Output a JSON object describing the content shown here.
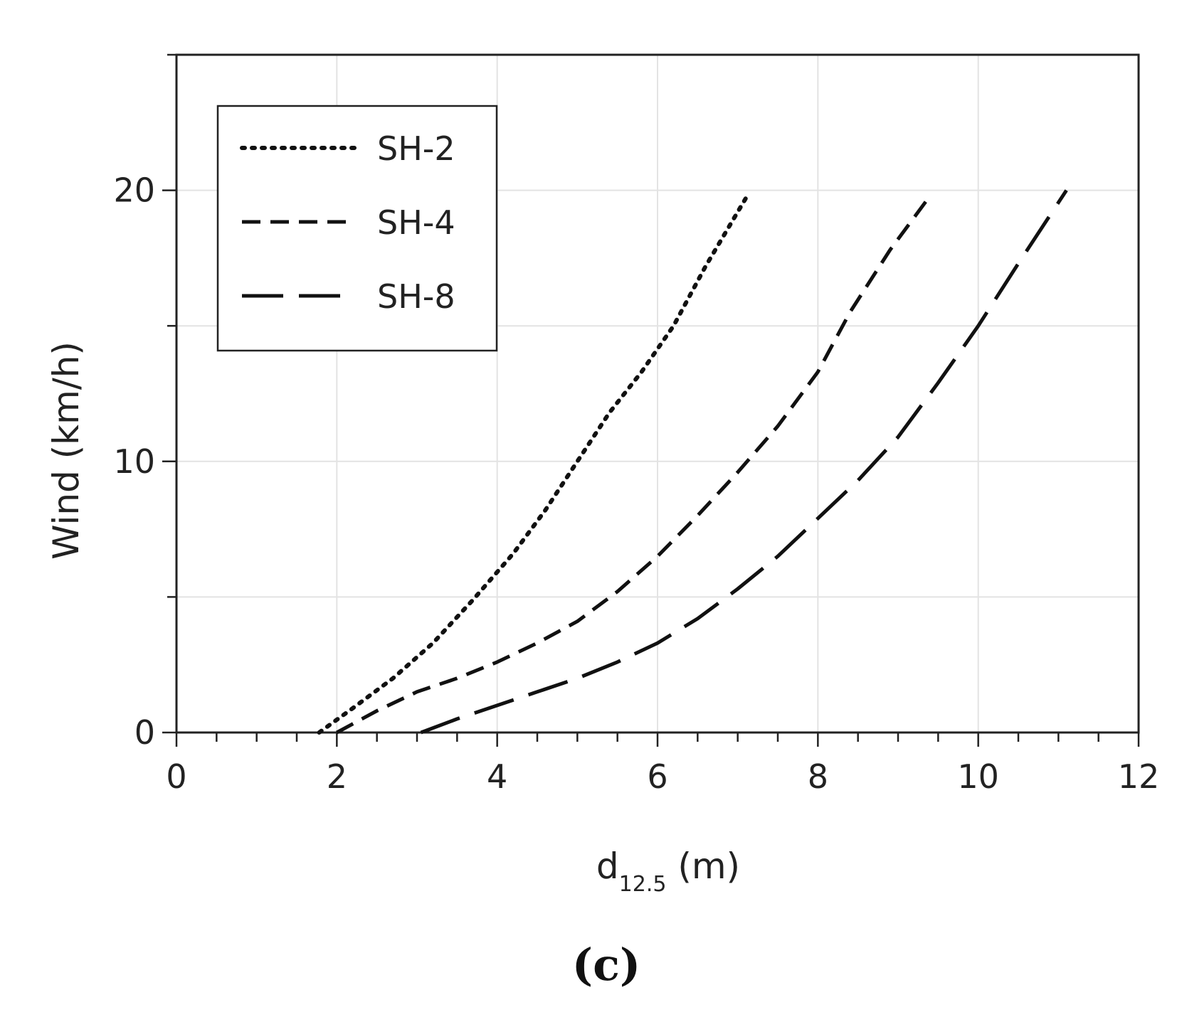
{
  "chart_data": {
    "type": "line",
    "title": "",
    "xlabel": "d",
    "xlabel_sub": "12.5",
    "xlabel_unit": " (m)",
    "ylabel": "Wind (km/h)",
    "xlim": [
      0,
      12
    ],
    "ylim": [
      0,
      25
    ],
    "x_ticks": [
      "0",
      "2",
      "4",
      "6",
      "8",
      "10",
      "12"
    ],
    "y_ticks": [
      "0",
      "10",
      "20"
    ],
    "grid": true,
    "legend_position": "top-left",
    "panel_label": "(c)",
    "series": [
      {
        "name": "SH-2",
        "style": "dotted",
        "color": "#111111",
        "points": [
          [
            1.78,
            0
          ],
          [
            2.2,
            0.9
          ],
          [
            2.7,
            2.0
          ],
          [
            3.2,
            3.3
          ],
          [
            3.7,
            4.9
          ],
          [
            4.2,
            6.6
          ],
          [
            4.6,
            8.2
          ],
          [
            5.0,
            10.0
          ],
          [
            5.4,
            11.8
          ],
          [
            5.8,
            13.3
          ],
          [
            6.2,
            15.0
          ],
          [
            6.6,
            17.2
          ],
          [
            7.1,
            19.7
          ]
        ]
      },
      {
        "name": "SH-4",
        "style": "dashed",
        "color": "#111111",
        "points": [
          [
            2.0,
            0
          ],
          [
            2.5,
            0.8
          ],
          [
            3.0,
            1.5
          ],
          [
            3.5,
            2.0
          ],
          [
            4.0,
            2.6
          ],
          [
            4.5,
            3.3
          ],
          [
            5.0,
            4.1
          ],
          [
            5.5,
            5.2
          ],
          [
            6.0,
            6.5
          ],
          [
            6.5,
            8.0
          ],
          [
            7.0,
            9.6
          ],
          [
            7.5,
            11.3
          ],
          [
            8.0,
            13.3
          ],
          [
            8.4,
            15.5
          ],
          [
            8.9,
            17.8
          ],
          [
            9.4,
            19.8
          ]
        ]
      },
      {
        "name": "SH-8",
        "style": "long-dashed",
        "color": "#111111",
        "points": [
          [
            3.05,
            0
          ],
          [
            3.5,
            0.5
          ],
          [
            4.0,
            1.0
          ],
          [
            4.5,
            1.5
          ],
          [
            5.0,
            2.0
          ],
          [
            5.5,
            2.6
          ],
          [
            6.0,
            3.3
          ],
          [
            6.5,
            4.2
          ],
          [
            7.0,
            5.3
          ],
          [
            7.5,
            6.5
          ],
          [
            8.0,
            7.9
          ],
          [
            8.5,
            9.3
          ],
          [
            9.0,
            10.9
          ],
          [
            9.5,
            12.9
          ],
          [
            10.0,
            15.0
          ],
          [
            10.5,
            17.3
          ],
          [
            11.1,
            20.0
          ]
        ]
      }
    ]
  }
}
